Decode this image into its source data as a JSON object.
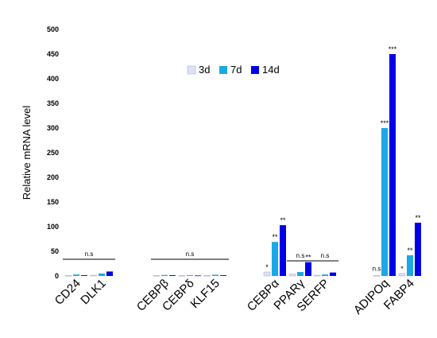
{
  "chart_data": {
    "type": "bar",
    "title": "",
    "xlabel": "",
    "ylabel": "Relative mRNA level",
    "ylim": [
      0,
      500
    ],
    "yticks": [
      0,
      50,
      100,
      150,
      200,
      250,
      300,
      350,
      400,
      450,
      500
    ],
    "grid": false,
    "legend_position": "top-center",
    "categories": [
      "CD24",
      "DLK1",
      "CEBPβ",
      "CEBPδ",
      "KLF15",
      "CEBPα",
      "PPARγ",
      "SERFP",
      "ADIPOq",
      "FABP4"
    ],
    "series": [
      {
        "name": "3d",
        "color": "#dde3f2",
        "values": [
          1,
          1.5,
          1,
          1,
          1,
          8,
          4,
          1.5,
          1,
          5
        ]
      },
      {
        "name": "7d",
        "color": "#1aa8e6",
        "values": [
          3,
          5,
          2,
          1.5,
          2.5,
          69,
          8,
          3,
          300,
          42
        ]
      },
      {
        "name": "14d",
        "color": "#0000e6",
        "values": [
          1.5,
          9,
          1.5,
          1,
          1.5,
          103,
          28,
          7,
          450,
          108
        ]
      }
    ],
    "significance": [
      {
        "category": "CEBPα",
        "labels": [
          "*",
          "**",
          "**"
        ]
      },
      {
        "category": "PPARγ",
        "labels": [
          "",
          "",
          "**"
        ]
      },
      {
        "category": "ADIPOq",
        "labels": [
          "n.s",
          "***",
          "***"
        ]
      },
      {
        "category": "FABP4",
        "labels": [
          "*",
          "**",
          "**"
        ]
      }
    ],
    "brackets": [
      {
        "label": "n.s",
        "from": "CD24",
        "to": "DLK1"
      },
      {
        "label": "n.s",
        "from": "CEBPβ",
        "to": "KLF15"
      },
      {
        "label": "n.s",
        "from": "PPARγ",
        "to": "PPARγ"
      },
      {
        "label": "n.s",
        "from": "SERFP",
        "to": "SERFP"
      }
    ]
  }
}
